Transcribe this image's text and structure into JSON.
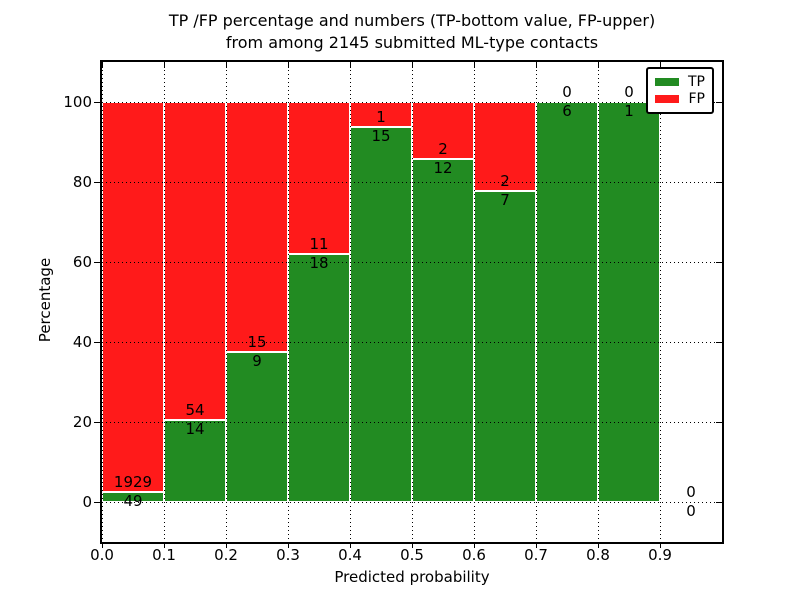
{
  "chart_data": {
    "type": "bar",
    "stacked": true,
    "title_line1": "TP /FP percentage and numbers (TP-bottom value, FP-upper)",
    "title_line2": "from among 2145 submitted ML-type contacts",
    "xlabel": "Predicted probability",
    "ylabel": "Percentage",
    "total_contacts": 2145,
    "x_tick_labels": [
      "0.0",
      "0.1",
      "0.2",
      "0.3",
      "0.4",
      "0.5",
      "0.6",
      "0.7",
      "0.8",
      "0.9"
    ],
    "x_tick_values": [
      0.0,
      0.1,
      0.2,
      0.3,
      0.4,
      0.5,
      0.6,
      0.7,
      0.8,
      0.9
    ],
    "y_ticks": [
      0,
      20,
      40,
      60,
      80,
      100
    ],
    "ylim": [
      -10,
      110
    ],
    "xlim": [
      0,
      1.0
    ],
    "bin_width": 0.1,
    "grid": true,
    "legend_position": "upper right",
    "series": [
      {
        "name": "TP",
        "color": "#228b22",
        "values": [
          49,
          14,
          9,
          18,
          15,
          12,
          7,
          6,
          1,
          0
        ]
      },
      {
        "name": "FP",
        "color": "#ff1a1a",
        "values": [
          1929,
          54,
          15,
          11,
          1,
          2,
          2,
          0,
          0,
          0
        ]
      }
    ],
    "bins": [
      {
        "range": "0.0-0.1",
        "tp": 49,
        "fp": 1929
      },
      {
        "range": "0.1-0.2",
        "tp": 14,
        "fp": 54
      },
      {
        "range": "0.2-0.3",
        "tp": 9,
        "fp": 15
      },
      {
        "range": "0.3-0.4",
        "tp": 18,
        "fp": 11
      },
      {
        "range": "0.4-0.5",
        "tp": 15,
        "fp": 1
      },
      {
        "range": "0.5-0.6",
        "tp": 12,
        "fp": 2
      },
      {
        "range": "0.6-0.7",
        "tp": 7,
        "fp": 2
      },
      {
        "range": "0.7-0.8",
        "tp": 6,
        "fp": 0
      },
      {
        "range": "0.8-0.9",
        "tp": 1,
        "fp": 0
      },
      {
        "range": "0.9-1.0",
        "tp": 0,
        "fp": 0
      }
    ],
    "legend": [
      {
        "label": "TP",
        "color": "#228b22"
      },
      {
        "label": "FP",
        "color": "#ff1a1a"
      }
    ],
    "colors": {
      "tp": "#228b22",
      "fp": "#ff1a1a",
      "grid": "#000000",
      "frame": "#000000",
      "background": "#ffffff",
      "text": "#000000"
    }
  }
}
